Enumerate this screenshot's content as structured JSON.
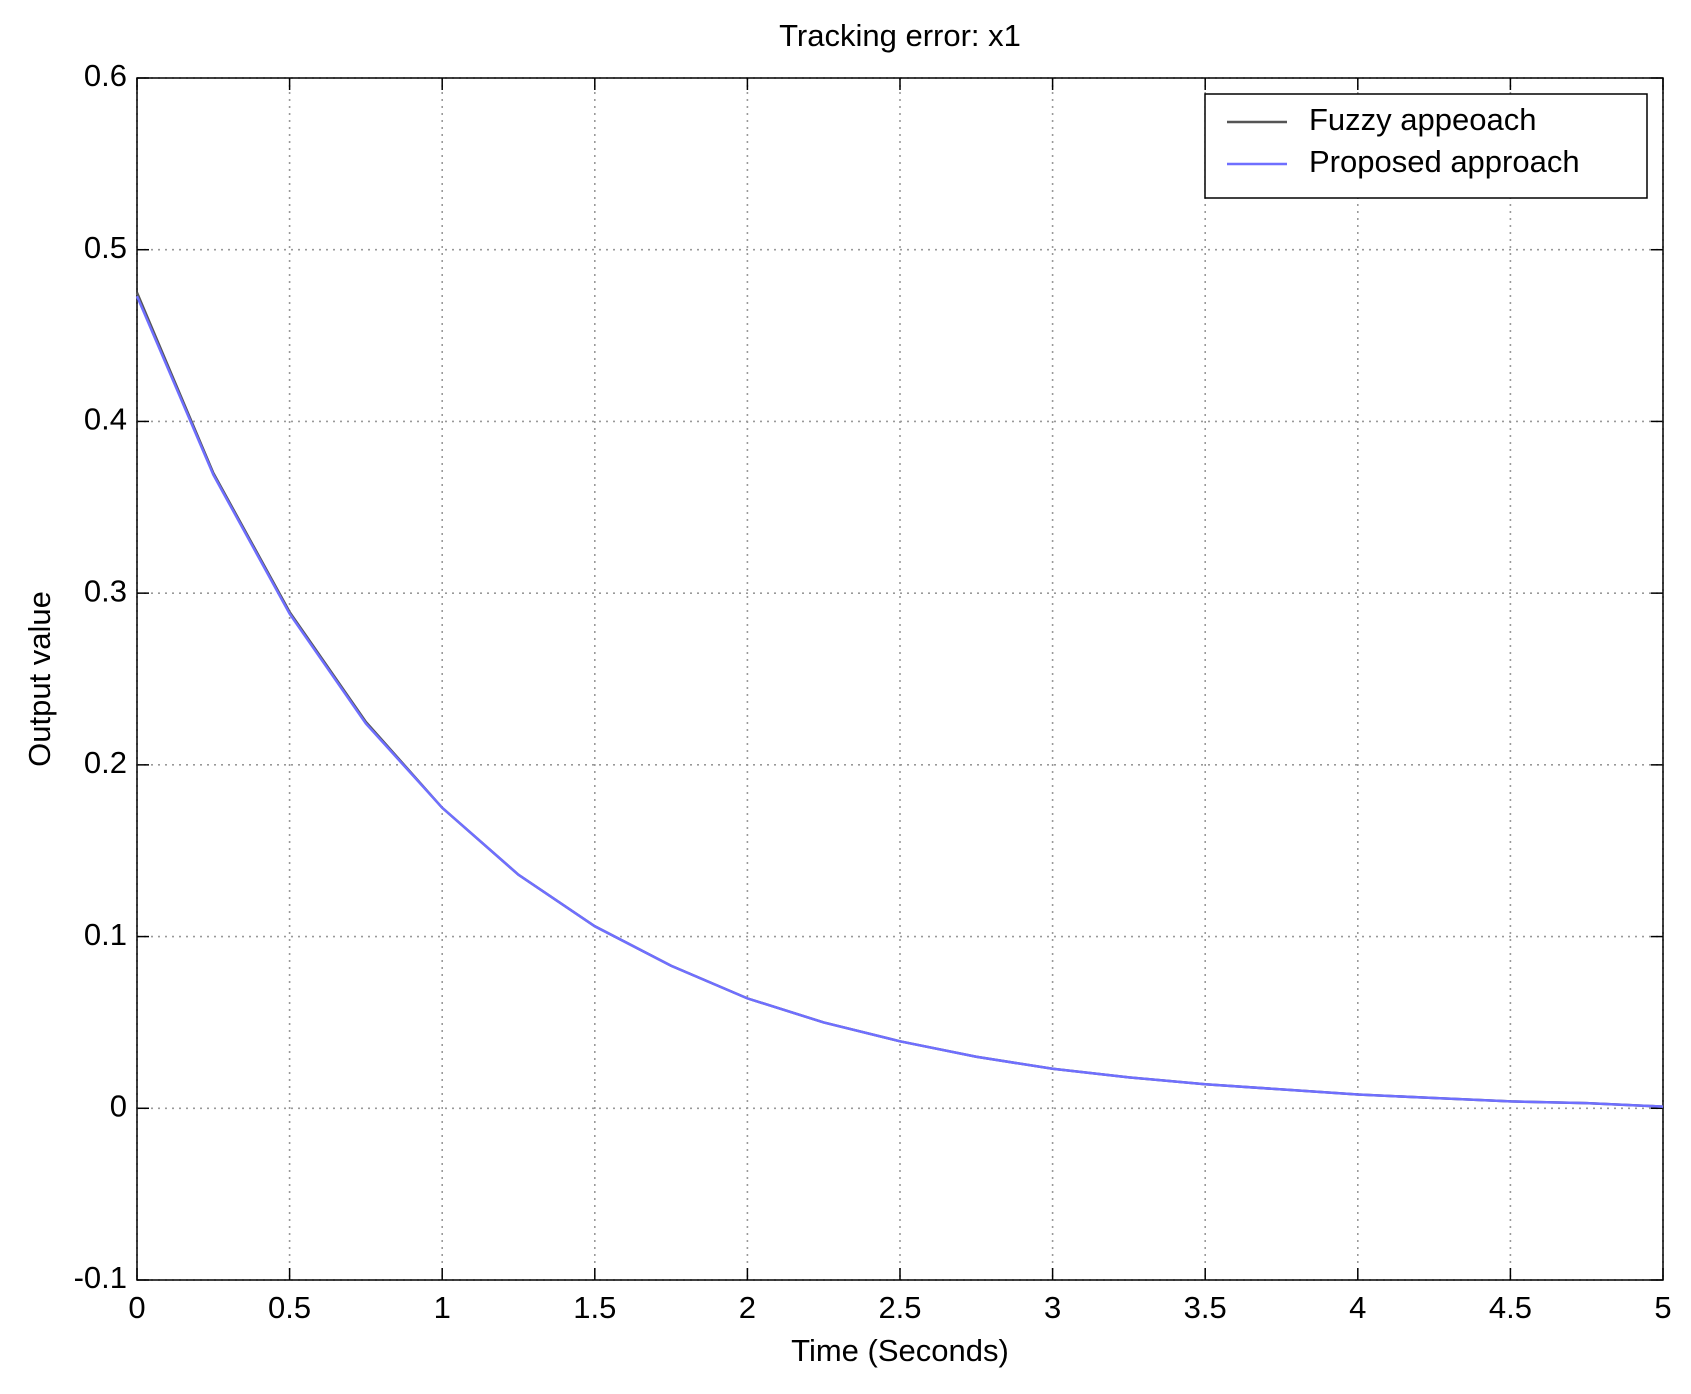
{
  "chart_data": {
    "type": "line",
    "title": "Tracking error: x1",
    "x_label": "Time (Seconds)",
    "y_label": "Output value",
    "x": [
      0,
      0.25,
      0.5,
      0.75,
      1,
      1.25,
      1.5,
      1.75,
      2,
      2.25,
      2.5,
      2.75,
      3,
      3.25,
      3.5,
      3.75,
      4,
      4.25,
      4.5,
      4.75,
      5
    ],
    "series": [
      {
        "name": "Fuzzy appeoach",
        "color": "#555555",
        "values": [
          0.475,
          0.37,
          0.289,
          0.225,
          0.175,
          0.136,
          0.106,
          0.083,
          0.064,
          0.05,
          0.039,
          0.03,
          0.023,
          0.018,
          0.014,
          0.011,
          0.008,
          0.006,
          0.004,
          0.003,
          0.001
        ]
      },
      {
        "name": "Proposed approach",
        "color": "#6f6fff",
        "values": [
          0.473,
          0.369,
          0.288,
          0.224,
          0.175,
          0.136,
          0.106,
          0.083,
          0.064,
          0.05,
          0.039,
          0.03,
          0.023,
          0.018,
          0.014,
          0.011,
          0.008,
          0.006,
          0.004,
          0.003,
          0.001
        ]
      }
    ],
    "xlim": [
      0,
      5
    ],
    "xticks": [
      0,
      0.5,
      1,
      1.5,
      2,
      2.5,
      3,
      3.5,
      4,
      4.5,
      5
    ],
    "ylim": [
      -0.1,
      0.6
    ],
    "yticks": [
      -0.1,
      0,
      0.1,
      0.2,
      0.3,
      0.4,
      0.5,
      0.6
    ],
    "grid": true,
    "legend": "upper-right"
  }
}
